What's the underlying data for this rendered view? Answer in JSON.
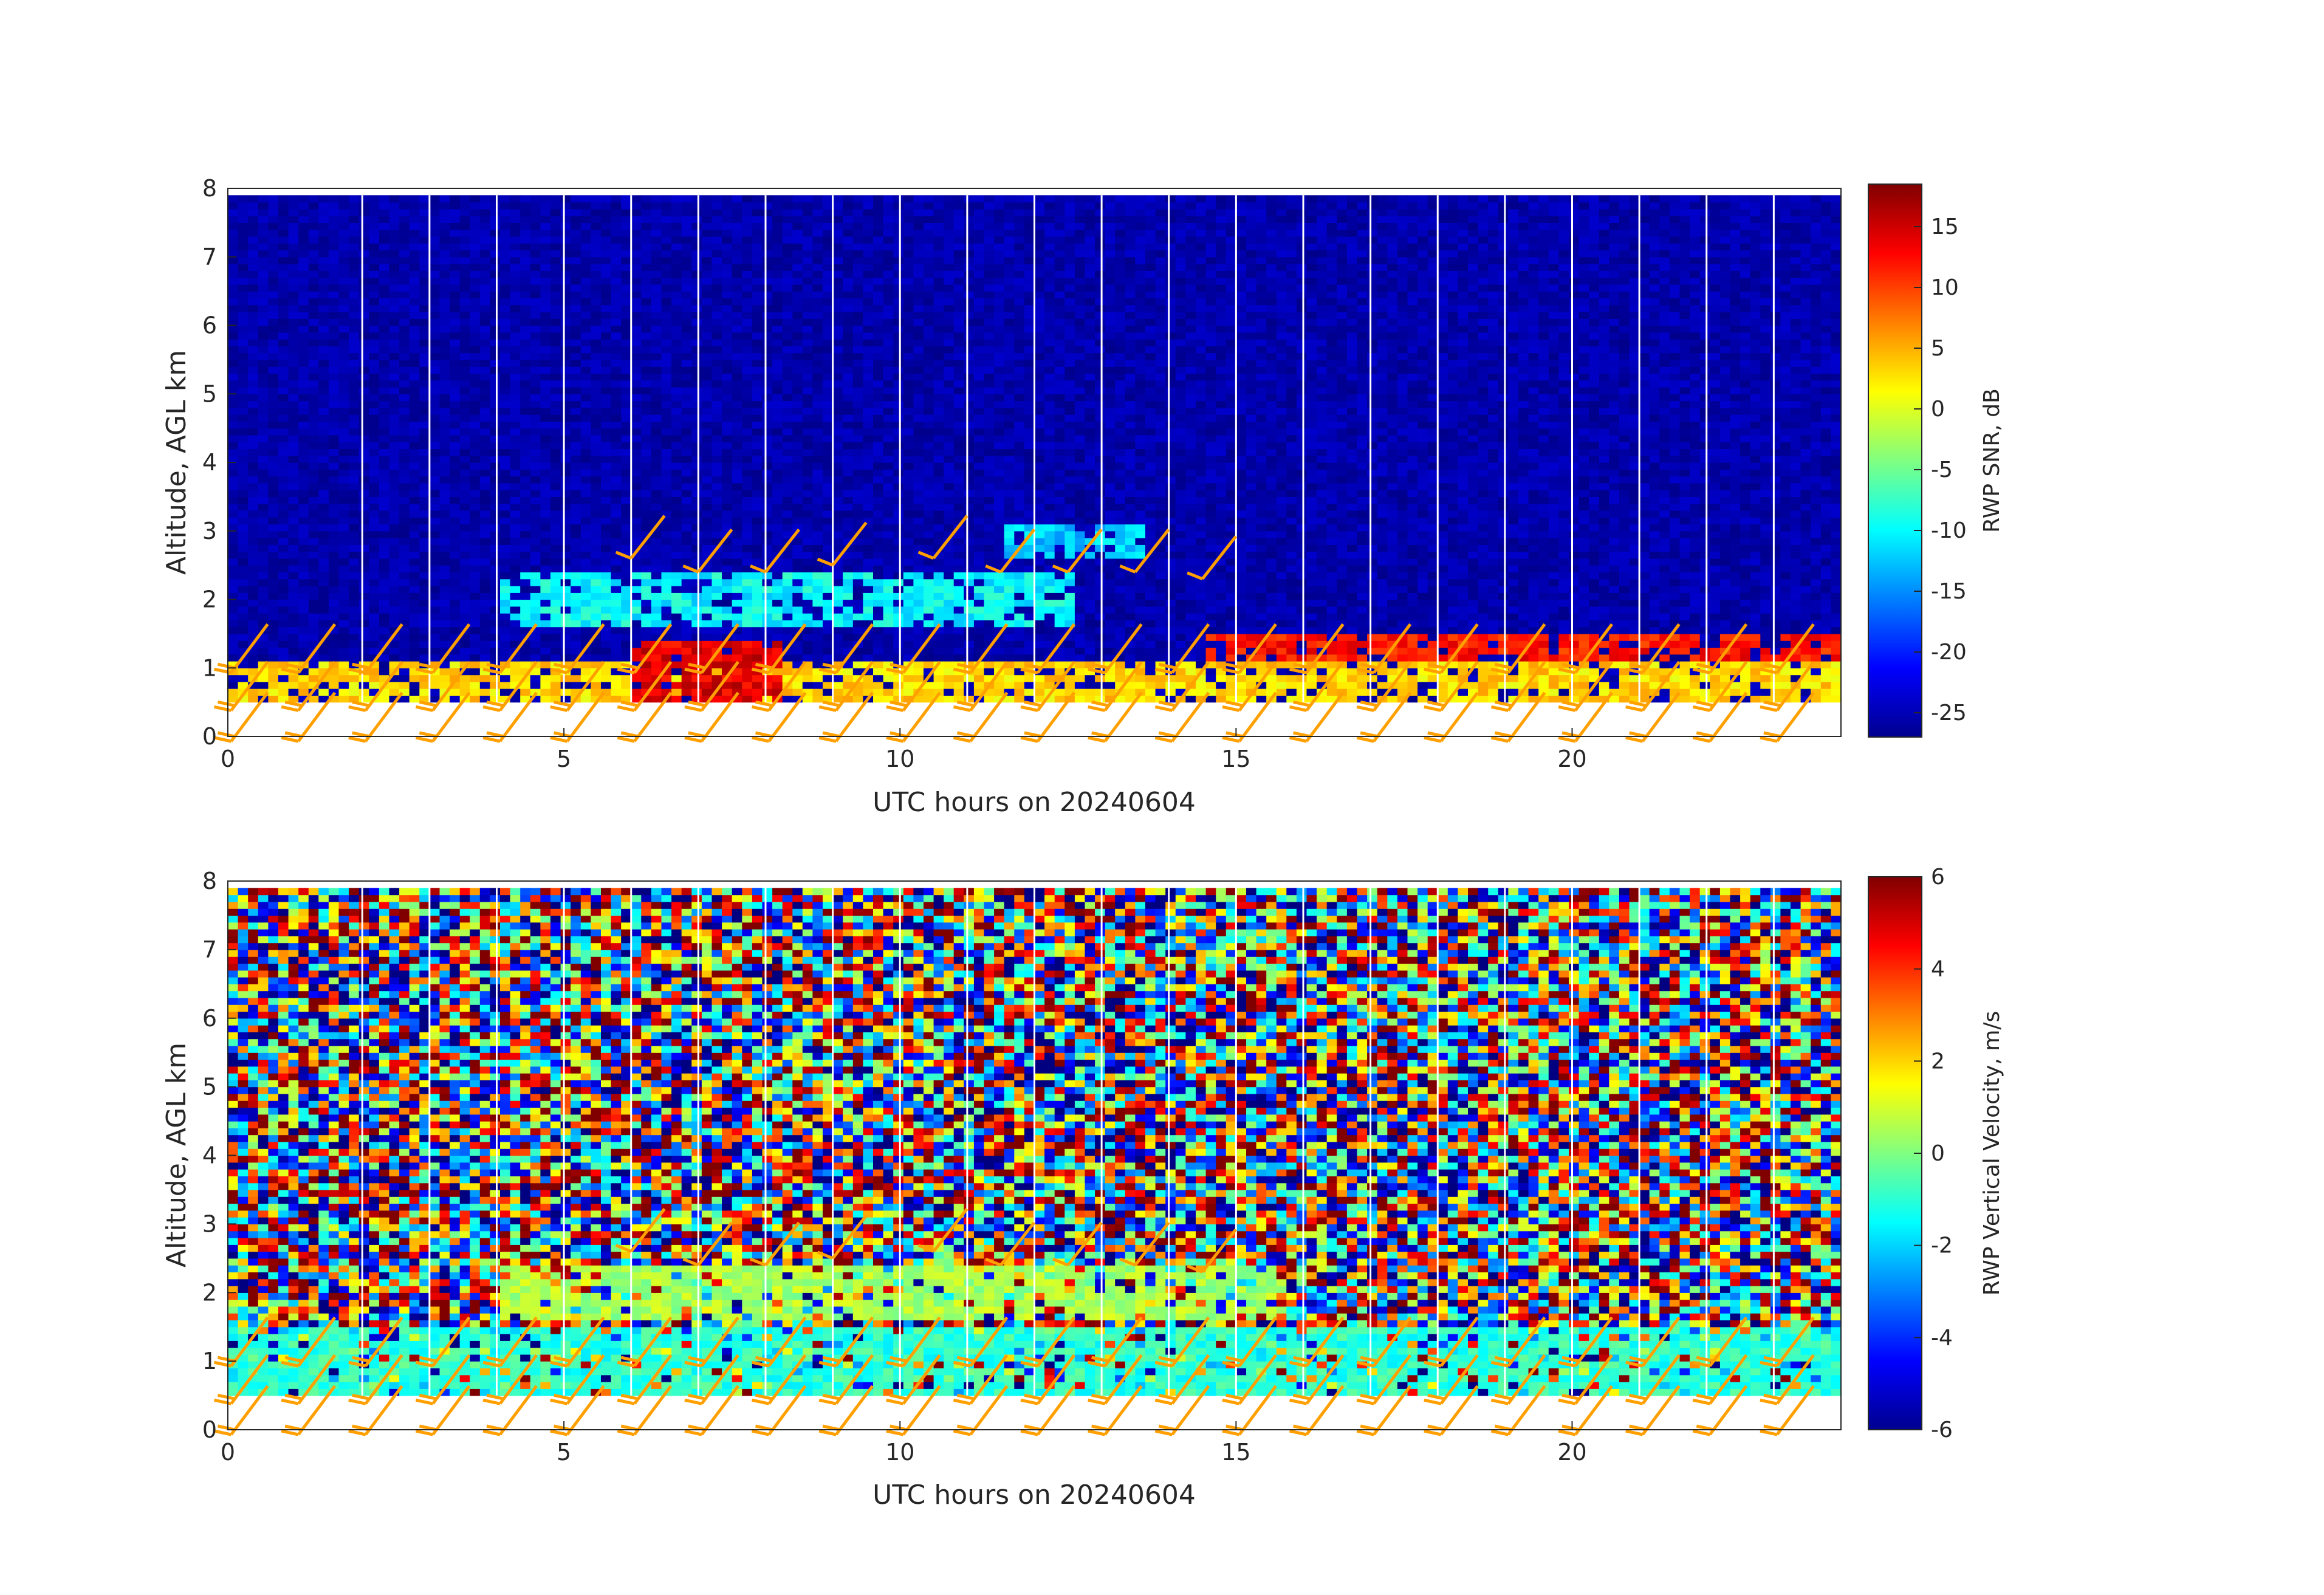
{
  "chart_data": [
    {
      "type": "heatmap",
      "xlabel": "UTC hours on 20240604",
      "ylabel": "Altitude, AGL km",
      "xlim": [
        0,
        24
      ],
      "ylim": [
        0,
        8
      ],
      "xticks": [
        0,
        5,
        10,
        15,
        20
      ],
      "yticks": [
        0,
        1,
        2,
        3,
        4,
        5,
        6,
        7,
        8
      ],
      "colorbar": {
        "label": "RWP SNR, dB",
        "range": [
          -27,
          18.5
        ],
        "ticks": [
          -25,
          -20,
          -15,
          -10,
          -5,
          0,
          5,
          10,
          15
        ],
        "colormap": "jet"
      },
      "data_bottom_km": 0.5,
      "data_top_km": 7.9,
      "background_value": -25,
      "features": [
        {
          "x": [
            0,
            24
          ],
          "y": [
            0.5,
            1.0
          ],
          "value": 3,
          "note": "near-surface layer"
        },
        {
          "x": [
            6.0,
            8.2
          ],
          "y": [
            0.5,
            1.3
          ],
          "value": 14,
          "note": "strong return"
        },
        {
          "x": [
            14.5,
            24
          ],
          "y": [
            1.1,
            1.45
          ],
          "value": 12,
          "note": "elevated layer"
        },
        {
          "x": [
            4.0,
            12.5
          ],
          "y": [
            1.6,
            2.3
          ],
          "value": -10,
          "note": "mid-level layer"
        },
        {
          "x": [
            11.5,
            13.5
          ],
          "y": [
            2.6,
            3.0
          ],
          "value": -12,
          "note": "upper layer"
        }
      ],
      "wind_barbs": true,
      "barb_color": "#ffa000"
    },
    {
      "type": "heatmap",
      "xlabel": "UTC hours on 20240604",
      "ylabel": "Altitude, AGL km",
      "xlim": [
        0,
        24
      ],
      "ylim": [
        0,
        8
      ],
      "xticks": [
        0,
        5,
        10,
        15,
        20
      ],
      "yticks": [
        0,
        1,
        2,
        3,
        4,
        5,
        6,
        7,
        8
      ],
      "colorbar": {
        "label": "RWP Vertical Velocity, m/s",
        "range": [
          -6,
          6
        ],
        "ticks": [
          -6,
          -4,
          -2,
          0,
          2,
          4,
          6
        ],
        "colormap": "jet"
      },
      "data_bottom_km": 0.5,
      "data_top_km": 7.9,
      "background_value": "noise",
      "features": [
        {
          "x": [
            0,
            24
          ],
          "y": [
            0.5,
            1.4
          ],
          "value": -1,
          "note": "near-surface layer"
        },
        {
          "x": [
            4.0,
            15.5
          ],
          "y": [
            1.6,
            2.4
          ],
          "value": 0.5,
          "note": "mid-level layer"
        }
      ],
      "wind_barbs": true,
      "barb_color": "#ffa000"
    }
  ]
}
